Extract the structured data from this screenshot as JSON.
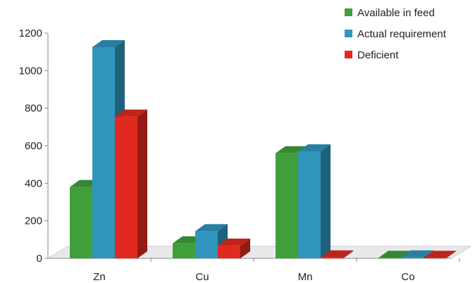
{
  "chart_data": {
    "type": "bar",
    "categories": [
      "Zn",
      "Cu",
      "Mn",
      "Co"
    ],
    "series": [
      {
        "name": "Available in feed",
        "color": "#3f9f3a",
        "values": [
          380,
          80,
          560,
          3
        ]
      },
      {
        "name": "Actual requirement",
        "color": "#2f95bd",
        "values": [
          1125,
          145,
          570,
          5
        ]
      },
      {
        "name": "Deficient",
        "color": "#e02a1f",
        "values": [
          755,
          68,
          5,
          3
        ]
      }
    ],
    "y_ticks": [
      0,
      200,
      400,
      600,
      800,
      1000,
      1200
    ],
    "ylim": [
      0,
      1200
    ],
    "legend_position": "top-right",
    "grid": false,
    "three_d": true
  }
}
